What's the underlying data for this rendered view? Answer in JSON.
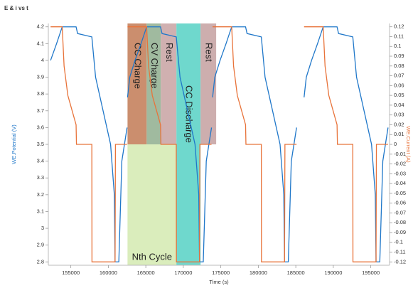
{
  "chart_data": {
    "type": "line",
    "title": "E & i vs t",
    "xlabel": "Time (s)",
    "ylabel": "WE.Potential (V)",
    "y2label": "WE.Current (A)",
    "xlim": [
      152000,
      197500
    ],
    "xticks": [
      155000,
      160000,
      165000,
      170000,
      175000,
      180000,
      185000,
      190000,
      195000
    ],
    "ylim": [
      2.78,
      4.22
    ],
    "yticks": [
      2.8,
      2.9,
      3,
      3.1,
      3.2,
      3.3,
      3.4,
      3.5,
      3.6,
      3.7,
      3.8,
      3.9,
      4,
      4.1,
      4.2
    ],
    "y2lim": [
      -0.1234,
      0.1234
    ],
    "y2ticks": [
      -0.12,
      -0.11,
      -0.1,
      -0.09,
      -0.08,
      -0.07,
      -0.06,
      -0.05,
      -0.04,
      -0.03,
      -0.02,
      -0.01,
      0,
      0.01,
      0.02,
      0.03,
      0.04,
      0.05,
      0.06,
      0.07,
      0.08,
      0.09,
      0.1,
      0.11,
      0.12
    ],
    "series": [
      {
        "color": "#1f77c9",
        "x": [
          152300,
          153100,
          153850,
          155700,
          155900,
          157800,
          158300,
          159300,
          160300,
          160800,
          160900,
          161400,
          161800,
          162500,
          null,
          162560,
          162860,
          163560,
          164360,
          165110,
          166960,
          167160,
          169060,
          169560,
          170560,
          171560,
          172060,
          172160,
          172660,
          173060,
          173760,
          null,
          173900,
          174200,
          174900,
          175700,
          176450,
          178300,
          178500,
          180400,
          180900,
          181900,
          182900,
          183400,
          183500,
          184000,
          184400,
          185100,
          null,
          186100,
          186400,
          187100,
          187900,
          188650,
          190500,
          190700,
          192600,
          193100,
          194100,
          195100,
          195600,
          195700,
          196200,
          196600,
          197300
        ],
        "values": [
          4.0,
          4.1,
          4.2,
          4.2,
          4.16,
          4.14,
          3.9,
          3.7,
          3.5,
          3.2,
          2.8,
          2.8,
          3.4,
          3.6,
          null,
          3.78,
          3.9,
          4.0,
          4.1,
          4.2,
          4.2,
          4.16,
          4.14,
          3.9,
          3.7,
          3.5,
          3.2,
          2.8,
          2.8,
          3.4,
          3.6,
          null,
          3.78,
          3.9,
          4.0,
          4.1,
          4.2,
          4.2,
          4.16,
          4.14,
          3.9,
          3.7,
          3.5,
          3.2,
          2.8,
          2.8,
          3.4,
          3.6,
          null,
          3.78,
          3.9,
          4.0,
          4.1,
          4.2,
          4.2,
          4.16,
          4.14,
          3.9,
          3.7,
          3.5,
          3.2,
          2.8,
          2.8,
          3.4,
          3.6
        ]
      },
      {
        "color": "#e8733a",
        "axis": "y2",
        "x": [
          152300,
          153850,
          154100,
          154600,
          155700,
          155750,
          157800,
          157820,
          160900,
          160950,
          162500,
          null,
          162560,
          165110,
          165360,
          165860,
          166960,
          167010,
          169060,
          169080,
          172160,
          172210,
          173760,
          null,
          173900,
          176450,
          176700,
          177200,
          178300,
          178350,
          180400,
          180420,
          183500,
          183550,
          185100,
          null,
          186100,
          188650,
          188900,
          189400,
          190500,
          190550,
          192600,
          192620,
          195700,
          195750,
          197300
        ],
        "values": [
          0.12,
          0.12,
          0.08,
          0.05,
          0.02,
          0,
          0,
          -0.12,
          -0.12,
          0,
          0,
          null,
          0.12,
          0.12,
          0.08,
          0.05,
          0.02,
          0,
          0,
          -0.12,
          -0.12,
          0,
          0,
          null,
          0.12,
          0.12,
          0.08,
          0.05,
          0.02,
          0,
          0,
          -0.12,
          -0.12,
          0,
          0,
          null,
          0.12,
          0.12,
          0.08,
          0.05,
          0.02,
          0,
          0,
          -0.12,
          -0.12,
          0,
          0
        ]
      }
    ],
    "regions": [
      {
        "label": "Nth Cycle",
        "x": [
          162560,
          169080
        ],
        "y": [
          2.78,
          3.5
        ],
        "color": "#d3eab0"
      },
      {
        "label": "CC Charge",
        "x": [
          162560,
          165110
        ],
        "y": [
          3.5,
          4.22
        ],
        "color": "#c27a55"
      },
      {
        "label": "CV Charge",
        "x": [
          165110,
          167000
        ],
        "y": [
          3.5,
          4.22
        ],
        "color": "#8fae8e"
      },
      {
        "label": "Rest",
        "x": [
          167000,
          169080
        ],
        "y": [
          3.5,
          4.22
        ],
        "color": "#c8a2a2"
      },
      {
        "label": "CC Discharge",
        "x": [
          169080,
          172300
        ],
        "y": [
          2.78,
          4.22
        ],
        "color": "#56d1c4"
      },
      {
        "label": "Rest",
        "x": [
          172300,
          174380
        ],
        "y": [
          3.5,
          4.22
        ],
        "color": "#c4a0a0"
      }
    ]
  }
}
